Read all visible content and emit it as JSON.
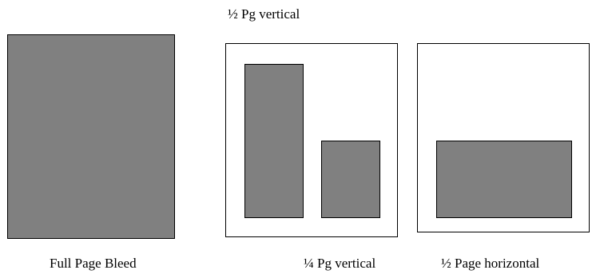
{
  "labels": {
    "half_pg_vertical": "½ Pg vertical",
    "full_page_bleed": "Full Page Bleed",
    "quarter_pg_vertical": "¼ Pg vertical",
    "half_page_horizontal": "½ Page horizontal"
  },
  "colors": {
    "fill": "#808080",
    "outline": "#000000",
    "background": "#ffffff"
  }
}
